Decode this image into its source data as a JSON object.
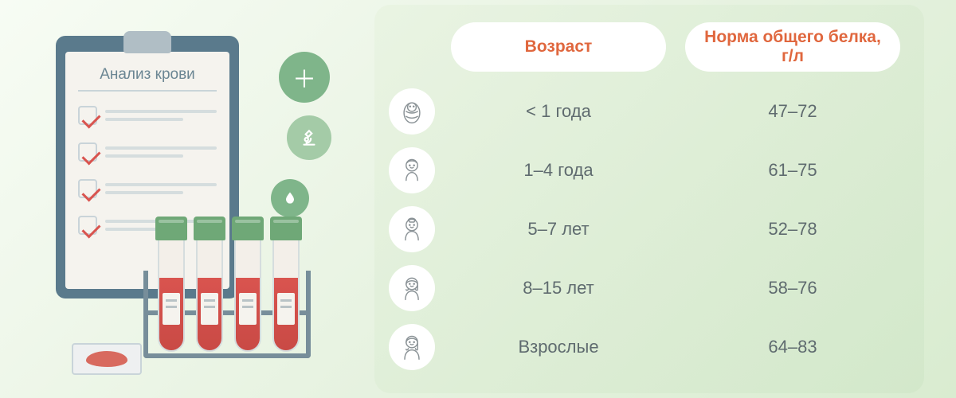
{
  "clipboard": {
    "title": "Анализ крови"
  },
  "table": {
    "headers": {
      "age": "Возраст",
      "norm": "Норма общего белка, г/л"
    },
    "rows": [
      {
        "icon": "baby-swaddle",
        "age": "< 1 года",
        "norm": "47–72"
      },
      {
        "icon": "toddler",
        "age": "1–4 года",
        "norm": "61–75"
      },
      {
        "icon": "child",
        "age": "5–7 лет",
        "norm": "52–78"
      },
      {
        "icon": "teen",
        "age": "8–15 лет",
        "norm": "58–76"
      },
      {
        "icon": "adult",
        "age": "Взрослые",
        "norm": "64–83"
      }
    ]
  },
  "colors": {
    "accent_orange": "#e0673e",
    "accent_green": "#7fb58a",
    "text_gray": "#5f6b6f",
    "blood_red": "#d9544f",
    "clipboard_back": "#5a7a8c"
  }
}
